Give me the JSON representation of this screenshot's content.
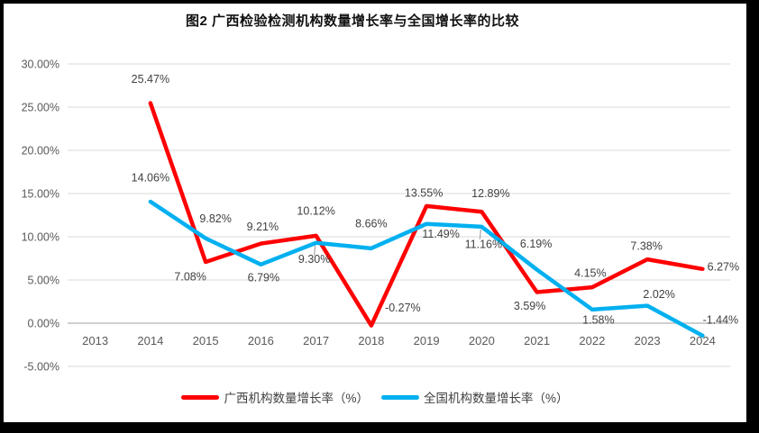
{
  "title": "图2 广西检验检测机构数量增长率与全国增长率的比较",
  "colors": {
    "frame": "#000000",
    "background": "#ffffff",
    "grid": "#d9d9d9",
    "axis": "#bfbfbf",
    "tick_text": "#595959",
    "label_text": "#404040",
    "leader": "#a6a6a6",
    "series_red": "#ff0000",
    "series_blue": "#00b0f0"
  },
  "chart_data": {
    "type": "line",
    "title": "图2 广西检验检测机构数量增长率与全国增长率的比较",
    "categories": [
      "2013",
      "2014",
      "2015",
      "2016",
      "2017",
      "2018",
      "2019",
      "2020",
      "2021",
      "2022",
      "2023",
      "2024"
    ],
    "series": [
      {
        "name": "广西机构数量增长率（%）",
        "color": "#ff0000",
        "values": [
          null,
          25.47,
          7.08,
          9.21,
          10.12,
          -0.27,
          13.55,
          12.89,
          3.59,
          4.15,
          7.38,
          6.27
        ]
      },
      {
        "name": "全国机构数量增长率（%）",
        "color": "#00b0f0",
        "values": [
          null,
          14.06,
          9.82,
          6.79,
          9.3,
          8.66,
          11.49,
          11.16,
          6.19,
          1.58,
          2.02,
          -1.44
        ]
      }
    ],
    "ylim": [
      -5,
      30
    ],
    "ytick_step": 5,
    "ytick_labels": [
      "-5.00%",
      "0.00%",
      "5.00%",
      "10.00%",
      "15.00%",
      "20.00%",
      "25.00%",
      "30.00%"
    ],
    "grid": true,
    "legend_position": "bottom",
    "label_offsets": [
      [
        null,
        [
          0,
          -27
        ],
        [
          -17,
          16
        ],
        [
          2,
          -19
        ],
        [
          0,
          -28
        ],
        [
          35,
          -20
        ],
        [
          -3,
          -15
        ],
        [
          10,
          -21
        ],
        [
          -8,
          15
        ],
        [
          -2,
          -16
        ],
        [
          -1,
          -15
        ],
        [
          23,
          -3
        ]
      ],
      [
        null,
        [
          0,
          -27
        ],
        [
          11,
          -22
        ],
        [
          3,
          14
        ],
        [
          -2,
          18
        ],
        [
          0,
          -28
        ],
        [
          16,
          11
        ],
        [
          2,
          19
        ],
        [
          -1,
          -29
        ],
        [
          7,
          11
        ],
        [
          13,
          -13
        ],
        [
          20,
          -18
        ]
      ]
    ],
    "leader_lines": [
      {
        "series": 1,
        "index": 4
      },
      {
        "series": 1,
        "index": 7
      }
    ]
  }
}
